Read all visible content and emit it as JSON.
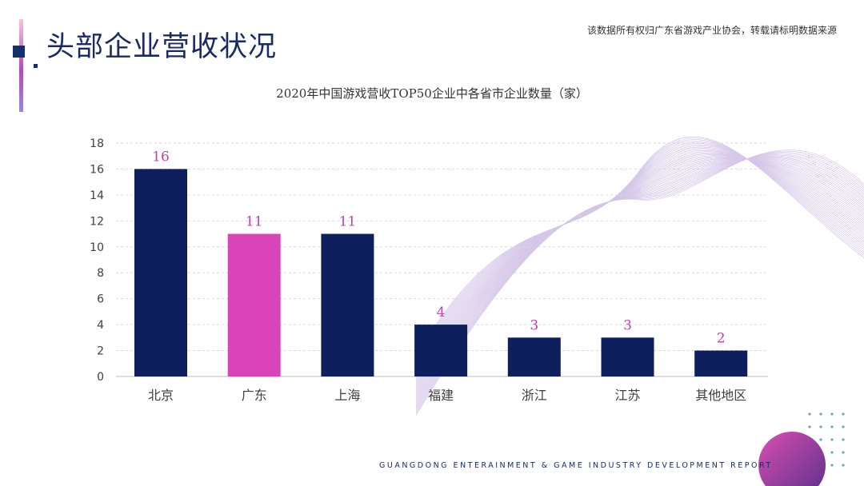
{
  "header": {
    "title": "头部企业营收状况",
    "copyright": "该数据所有权归广东省游戏产业协会，转载请标明数据来源"
  },
  "footer": {
    "text": "GUANGDONG ENTERAINMENT & GAME INDUSTRY DEVELOPMENT REPORT"
  },
  "colors": {
    "bar_default": "#0d1f5c",
    "bar_highlight": "#d945b8",
    "label": "#c43fb0",
    "title": "#1b2a66"
  },
  "chart_data": {
    "type": "bar",
    "title": "2020年中国游戏营收TOP50企业中各省市企业数量（家）",
    "categories": [
      "北京",
      "广东",
      "上海",
      "福建",
      "浙江",
      "江苏",
      "其他地区"
    ],
    "values": [
      16,
      11,
      11,
      4,
      3,
      3,
      2
    ],
    "highlight": "广东",
    "xlabel": "",
    "ylabel": "",
    "ylim": [
      0,
      18
    ],
    "yticks": [
      0,
      2,
      4,
      6,
      8,
      10,
      12,
      14,
      16,
      18
    ],
    "grid": true,
    "legend": "none"
  }
}
